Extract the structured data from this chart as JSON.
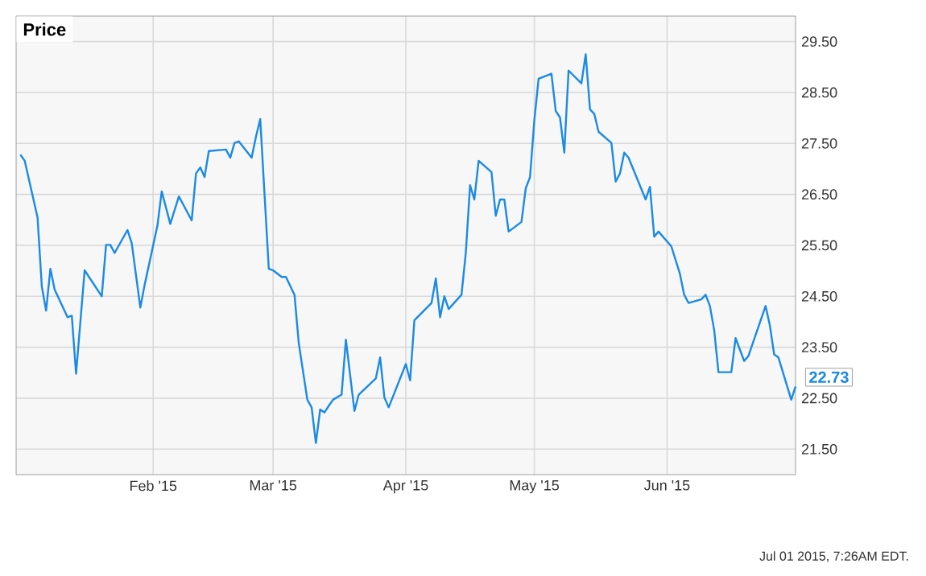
{
  "chart_data": {
    "type": "line",
    "title": "Price",
    "x": [
      "2015-01-01",
      "2015-01-02",
      "2015-01-05",
      "2015-01-06",
      "2015-01-07",
      "2015-01-08",
      "2015-01-09",
      "2015-01-12",
      "2015-01-13",
      "2015-01-14",
      "2015-01-16",
      "2015-01-20",
      "2015-01-21",
      "2015-01-22",
      "2015-01-23",
      "2015-01-26",
      "2015-01-27",
      "2015-01-29",
      "2015-01-30",
      "2015-02-02",
      "2015-02-03",
      "2015-02-05",
      "2015-02-07",
      "2015-02-10",
      "2015-02-11",
      "2015-02-12",
      "2015-02-13",
      "2015-02-14",
      "2015-02-18",
      "2015-02-19",
      "2015-02-20",
      "2015-02-21",
      "2015-02-24",
      "2015-02-25",
      "2015-02-26",
      "2015-02-28",
      "2015-03-01",
      "2015-03-03",
      "2015-03-04",
      "2015-03-06",
      "2015-03-07",
      "2015-03-09",
      "2015-03-10",
      "2015-03-11",
      "2015-03-12",
      "2015-03-13",
      "2015-03-14",
      "2015-03-15",
      "2015-03-17",
      "2015-03-18",
      "2015-03-20",
      "2015-03-21",
      "2015-03-25",
      "2015-03-26",
      "2015-03-27",
      "2015-03-28",
      "2015-04-01",
      "2015-04-02",
      "2015-04-03",
      "2015-04-07",
      "2015-04-08",
      "2015-04-09",
      "2015-04-10",
      "2015-04-11",
      "2015-04-14",
      "2015-04-15",
      "2015-04-16",
      "2015-04-17",
      "2015-04-18",
      "2015-04-21",
      "2015-04-22",
      "2015-04-23",
      "2015-04-24",
      "2015-04-25",
      "2015-04-28",
      "2015-04-29",
      "2015-04-30",
      "2015-05-01",
      "2015-05-02",
      "2015-05-05",
      "2015-05-06",
      "2015-05-07",
      "2015-05-08",
      "2015-05-09",
      "2015-05-12",
      "2015-05-13",
      "2015-05-14",
      "2015-05-15",
      "2015-05-16",
      "2015-05-19",
      "2015-05-20",
      "2015-05-21",
      "2015-05-22",
      "2015-05-23",
      "2015-05-27",
      "2015-05-28",
      "2015-05-29",
      "2015-05-30",
      "2015-06-02",
      "2015-06-04",
      "2015-06-05",
      "2015-06-06",
      "2015-06-09",
      "2015-06-10",
      "2015-06-11",
      "2015-06-12",
      "2015-06-13",
      "2015-06-16",
      "2015-06-17",
      "2015-06-19",
      "2015-06-20",
      "2015-06-24",
      "2015-06-25",
      "2015-06-26",
      "2015-06-27",
      "2015-06-30",
      "2015-07-01"
    ],
    "series": [
      {
        "color": "#1a8ae5",
        "values": [
          27.28,
          27.16,
          26.05,
          24.69,
          24.22,
          25.04,
          24.63,
          24.09,
          24.12,
          22.98,
          25.01,
          24.5,
          25.51,
          25.51,
          25.35,
          25.8,
          25.54,
          24.28,
          24.72,
          25.89,
          26.56,
          25.92,
          26.46,
          25.99,
          26.91,
          27.03,
          26.84,
          27.35,
          27.38,
          27.22,
          27.51,
          27.54,
          27.22,
          27.63,
          27.98,
          25.04,
          25.01,
          24.88,
          24.88,
          24.53,
          23.58,
          22.47,
          22.32,
          21.62,
          22.28,
          22.22,
          22.35,
          22.47,
          22.57,
          23.65,
          22.25,
          22.57,
          22.89,
          23.3,
          22.51,
          22.32,
          23.17,
          22.85,
          24.03,
          24.37,
          24.85,
          24.09,
          24.5,
          24.25,
          24.53,
          25.35,
          26.68,
          26.4,
          27.16,
          26.94,
          26.08,
          26.4,
          26.4,
          25.77,
          25.96,
          26.62,
          26.84,
          27.95,
          28.77,
          28.87,
          28.14,
          28.01,
          27.32,
          28.93,
          28.68,
          29.25,
          28.17,
          28.08,
          27.73,
          27.51,
          26.75,
          26.91,
          27.32,
          27.22,
          26.4,
          26.65,
          25.67,
          25.77,
          25.48,
          24.94,
          24.53,
          24.37,
          24.44,
          24.53,
          24.31,
          23.84,
          23.01,
          23.01,
          23.68,
          23.23,
          23.33,
          24.31,
          23.93,
          23.36,
          23.3,
          22.47,
          22.73
        ]
      }
    ],
    "xlim": [
      "2014-12-31",
      "2015-07-01"
    ],
    "xticks": [
      {
        "value": "2015-02-01",
        "label": "Feb '15"
      },
      {
        "value": "2015-03-01",
        "label": "Mar '15"
      },
      {
        "value": "2015-04-01",
        "label": "Apr '15"
      },
      {
        "value": "2015-05-01",
        "label": "May '15"
      },
      {
        "value": "2015-06-01",
        "label": "Jun '15"
      }
    ],
    "ylim": [
      21,
      30
    ],
    "yticks": [
      {
        "value": 21.5,
        "label": "21.50"
      },
      {
        "value": 22.5,
        "label": "22.50"
      },
      {
        "value": 23.5,
        "label": "23.50"
      },
      {
        "value": 24.5,
        "label": "24.50"
      },
      {
        "value": 25.5,
        "label": "25.50"
      },
      {
        "value": 26.5,
        "label": "26.50"
      },
      {
        "value": 27.5,
        "label": "27.50"
      },
      {
        "value": 28.5,
        "label": "28.50"
      },
      {
        "value": 29.5,
        "label": "29.50"
      }
    ],
    "grid": true,
    "annotations": [
      {
        "text": "22.73",
        "x": "2015-07-01",
        "y": 22.73
      },
      "Jul 01 2015, 7:26AM EDT."
    ]
  }
}
